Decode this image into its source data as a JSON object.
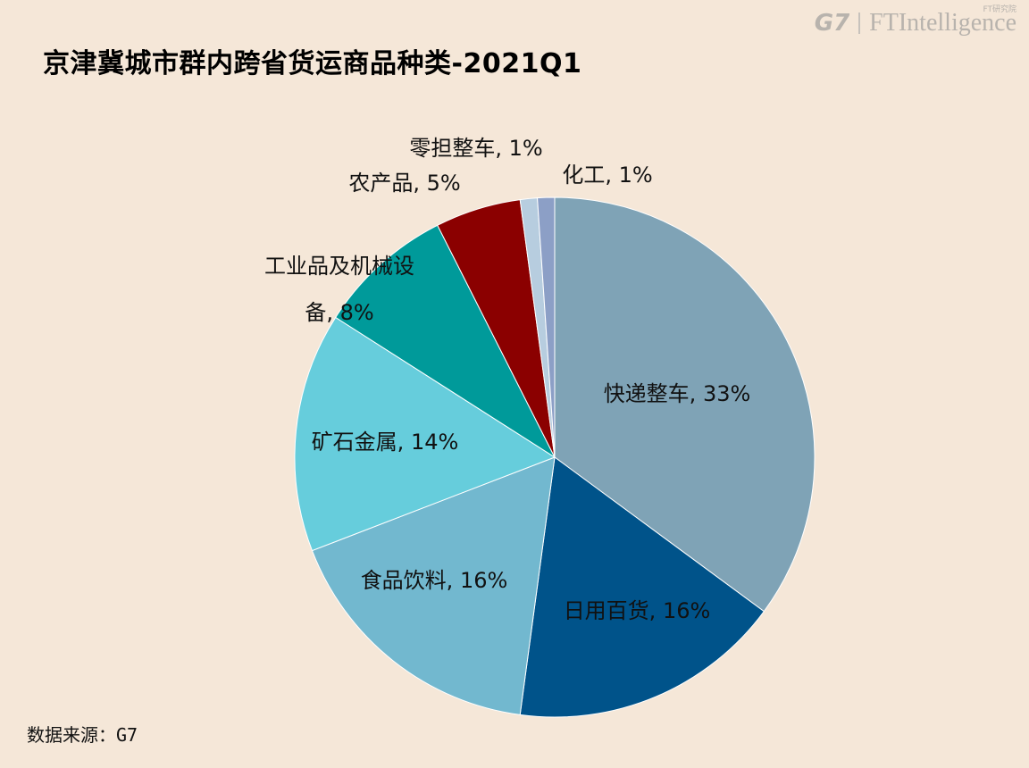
{
  "header": {
    "title": "京津冀城市群内跨省货运商品种类-2021Q1",
    "brand_g7": "G7",
    "brand_ft": "FTIntelligence",
    "brand_sub": "FT研究院"
  },
  "footer": {
    "source": "数据来源：G7"
  },
  "chart_data": {
    "type": "pie",
    "title": "京津冀城市群内跨省货运商品种类-2021Q1",
    "legend": "none",
    "start_angle_deg": 0,
    "direction": "clockwise",
    "slices": [
      {
        "label": "快递整车",
        "value": 33,
        "display": "快递整车, 33%",
        "color": "#7fa3b6"
      },
      {
        "label": "日用百货",
        "value": 16,
        "display": "日用百货, 16%",
        "color": "#00538a"
      },
      {
        "label": "食品饮料",
        "value": 16,
        "display": "食品饮料, 16%",
        "color": "#72b8cf"
      },
      {
        "label": "矿石金属",
        "value": 14,
        "display": "矿石金属, 14%",
        "color": "#66cddc"
      },
      {
        "label": "工业品及机械设备",
        "value": 8,
        "display_lines": [
          "工业品及机械设",
          "备, 8%"
        ],
        "color": "#009a9a"
      },
      {
        "label": "农产品",
        "value": 5,
        "display": "农产品, 5%",
        "color": "#8b0000"
      },
      {
        "label": "零担整车",
        "value": 1,
        "display": "零担整车, 1%",
        "color": "#b7cddf"
      },
      {
        "label": "化工",
        "value": 1,
        "display": "化工, 1%",
        "color": "#8c9fc6"
      }
    ]
  }
}
